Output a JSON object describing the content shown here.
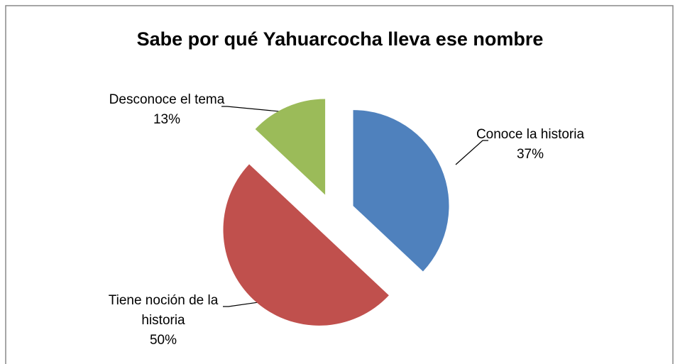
{
  "chart_data": {
    "type": "pie",
    "title": "Sabe por qué Yahuarcocha lleva ese nombre",
    "categories": [
      "Conoce la historia",
      "Tiene noción de la historia",
      "Desconoce el tema"
    ],
    "values": [
      37,
      50,
      13
    ],
    "value_labels": [
      "37%",
      "50%",
      "13%"
    ],
    "colors": [
      "#4f81bd",
      "#c0504d",
      "#9bbb59"
    ],
    "exploded": true
  }
}
